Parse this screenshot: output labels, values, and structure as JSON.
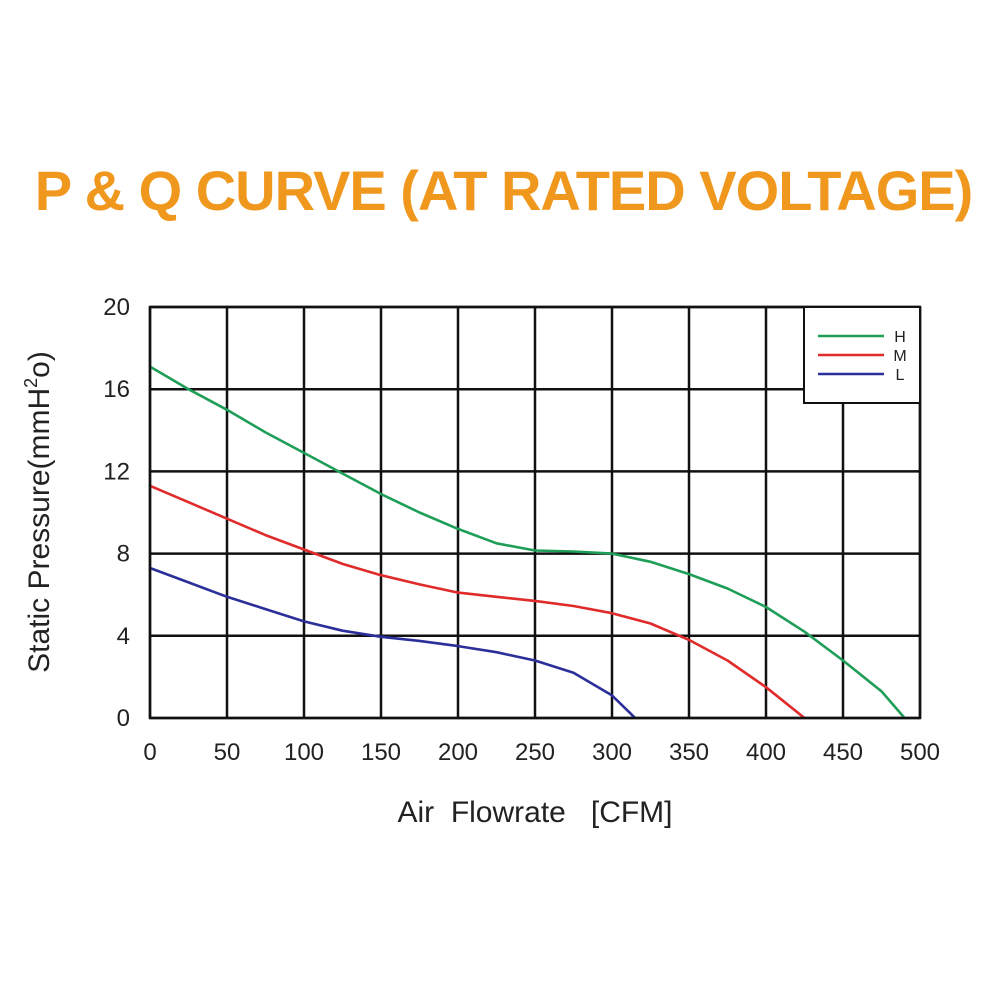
{
  "chart_data": {
    "type": "line",
    "title": "P & Q CURVE (AT RATED VOLTAGE)",
    "xlabel": "Air  Flowrate   [CFM]",
    "ylabel_main": "Static Pressure(mmH",
    "ylabel_sup": "2",
    "ylabel_end": "o)",
    "xlim": [
      0,
      500
    ],
    "ylim": [
      0,
      20
    ],
    "x_ticks": [
      "0",
      "50",
      "100",
      "150",
      "200",
      "250",
      "300",
      "350",
      "400",
      "450",
      "500"
    ],
    "y_ticks": [
      "0",
      "4",
      "8",
      "12",
      "16",
      "20"
    ],
    "grid": true,
    "legend_position": "top-right",
    "series": [
      {
        "name": "H",
        "color": "#1f9e57",
        "points": [
          [
            0,
            17.1
          ],
          [
            25,
            16.0
          ],
          [
            50,
            15.0
          ],
          [
            75,
            13.9
          ],
          [
            100,
            12.9
          ],
          [
            125,
            11.9
          ],
          [
            150,
            10.9
          ],
          [
            175,
            10.0
          ],
          [
            200,
            9.2
          ],
          [
            225,
            8.5
          ],
          [
            250,
            8.15
          ],
          [
            275,
            8.1
          ],
          [
            300,
            8.0
          ],
          [
            325,
            7.6
          ],
          [
            350,
            7.0
          ],
          [
            375,
            6.3
          ],
          [
            400,
            5.4
          ],
          [
            425,
            4.2
          ],
          [
            450,
            2.8
          ],
          [
            475,
            1.3
          ],
          [
            490,
            0
          ]
        ]
      },
      {
        "name": "M",
        "color": "#e02b2b",
        "points": [
          [
            0,
            11.3
          ],
          [
            25,
            10.5
          ],
          [
            50,
            9.7
          ],
          [
            75,
            8.9
          ],
          [
            100,
            8.2
          ],
          [
            125,
            7.5
          ],
          [
            150,
            6.95
          ],
          [
            175,
            6.5
          ],
          [
            200,
            6.1
          ],
          [
            225,
            5.9
          ],
          [
            250,
            5.7
          ],
          [
            275,
            5.45
          ],
          [
            300,
            5.1
          ],
          [
            325,
            4.6
          ],
          [
            350,
            3.8
          ],
          [
            375,
            2.8
          ],
          [
            400,
            1.5
          ],
          [
            415,
            0.6
          ],
          [
            425,
            0
          ]
        ]
      },
      {
        "name": "L",
        "color": "#2b2f9a",
        "points": [
          [
            0,
            7.3
          ],
          [
            25,
            6.6
          ],
          [
            50,
            5.9
          ],
          [
            75,
            5.3
          ],
          [
            100,
            4.7
          ],
          [
            125,
            4.25
          ],
          [
            150,
            3.95
          ],
          [
            175,
            3.75
          ],
          [
            200,
            3.5
          ],
          [
            225,
            3.2
          ],
          [
            250,
            2.8
          ],
          [
            275,
            2.2
          ],
          [
            300,
            1.1
          ],
          [
            315,
            0
          ]
        ]
      }
    ]
  }
}
